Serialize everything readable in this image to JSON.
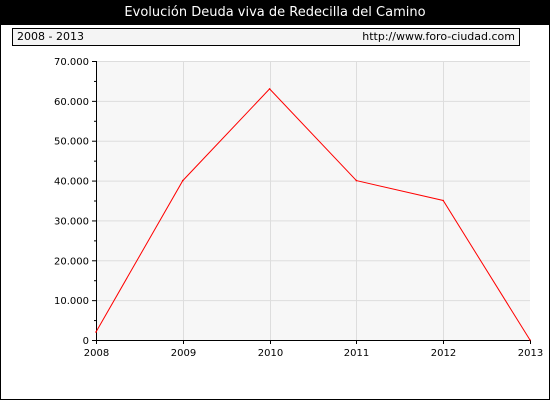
{
  "title": "Evolución Deuda viva de Redecilla del Camino",
  "period_label": "2008 - 2013",
  "source_url": "http://www.foro-ciudad.com",
  "colors": {
    "line": "#ff0000",
    "plot_bg": "#f7f7f7",
    "grid": "#dddddd"
  },
  "chart_data": {
    "type": "line",
    "title": "Evolución Deuda viva de Redecilla del Camino",
    "xlabel": "",
    "ylabel": "",
    "x": [
      "2008",
      "2009",
      "2010",
      "2011",
      "2012",
      "2013"
    ],
    "series": [
      {
        "values": [
          2000,
          40000,
          63000,
          40000,
          35000,
          0
        ]
      }
    ],
    "ylim": [
      0,
      70000
    ],
    "yticks": [
      0,
      10000,
      20000,
      30000,
      40000,
      50000,
      60000,
      70000
    ],
    "ytick_labels": [
      "0",
      "10.000",
      "20.000",
      "30.000",
      "40.000",
      "50.000",
      "60.000",
      "70.000"
    ],
    "grid": true,
    "legend": "none"
  }
}
